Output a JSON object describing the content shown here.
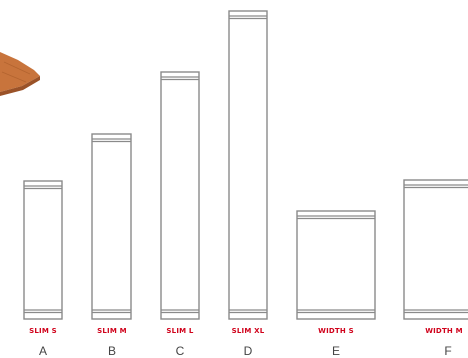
{
  "colors": {
    "outline": "#8a8a8a",
    "label": "#d0021b",
    "letter": "#444444",
    "wood": "#c8743c",
    "wood_dark": "#9a5228"
  },
  "decor": {
    "top_left": "wood-board-corner"
  },
  "variants": [
    {
      "size_label": "SLIM S",
      "letter": "A"
    },
    {
      "size_label": "SLIM M",
      "letter": "B"
    },
    {
      "size_label": "SLIM L",
      "letter": "C"
    },
    {
      "size_label": "SLIM XL",
      "letter": "D"
    },
    {
      "size_label": "WIDTH S",
      "letter": "E"
    },
    {
      "size_label": "WIDTH M",
      "letter": "F"
    }
  ]
}
